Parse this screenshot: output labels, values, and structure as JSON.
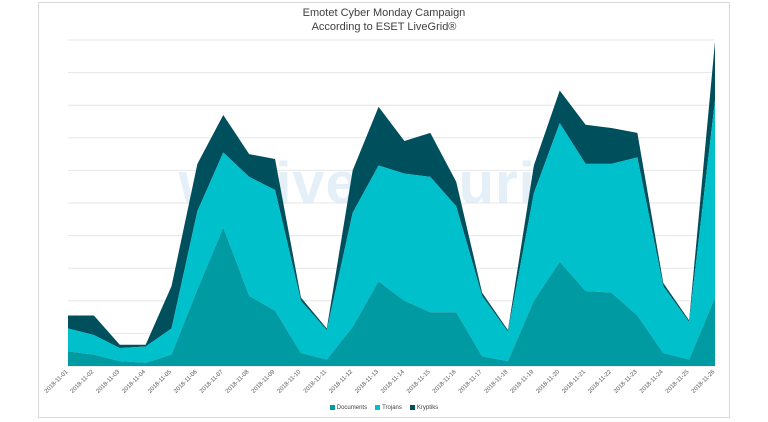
{
  "chart_data": {
    "type": "area",
    "stacked": true,
    "title": "Emotet Cyber Monday Campaign",
    "subtitle": "According to ESET LiveGrid®",
    "watermark": "welivesecurity",
    "grid": true,
    "legend_position": "bottom",
    "ylim": [
      0,
      100
    ],
    "categories": [
      "2018-11-01",
      "2018-11-02",
      "2018-11-03",
      "2018-11-04",
      "2018-11-05",
      "2018-11-06",
      "2018-11-07",
      "2018-11-08",
      "2018-11-09",
      "2018-11-10",
      "2018-11-11",
      "2018-11-12",
      "2018-11-13",
      "2018-11-14",
      "2018-11-15",
      "2018-11-16",
      "2018-11-17",
      "2018-11-18",
      "2018-11-19",
      "2018-11-20",
      "2018-11-21",
      "2018-11-22",
      "2018-11-23",
      "2018-11-24",
      "2018-11-25",
      "2018-11-26"
    ],
    "series": [
      {
        "name": "Documents",
        "color": "#009aa3",
        "values": [
          4.5,
          3.5,
          1.5,
          1.0,
          3.5,
          23.5,
          42.5,
          21.5,
          17.0,
          4.0,
          2.0,
          12.0,
          26.0,
          20.0,
          16.5,
          16.5,
          3.0,
          1.5,
          20.0,
          32.0,
          23.0,
          22.5,
          15.5,
          4.0,
          2.0,
          21.0
        ]
      },
      {
        "name": "Trojans",
        "color": "#00c0cc",
        "values": [
          7.0,
          6.0,
          4.0,
          5.0,
          8.0,
          24.0,
          23.0,
          36.5,
          37.0,
          16.0,
          9.0,
          35.0,
          35.5,
          39.0,
          41.5,
          32.5,
          18.5,
          9.0,
          33.0,
          42.5,
          39.0,
          39.5,
          48.5,
          20.5,
          11.5,
          60.5
        ]
      },
      {
        "name": "Kryptiks",
        "color": "#004f5c",
        "values": [
          4.0,
          6.0,
          1.0,
          0.5,
          13.0,
          14.5,
          11.5,
          7.0,
          9.5,
          1.0,
          0.5,
          13.0,
          18.0,
          10.0,
          13.5,
          7.5,
          1.0,
          0.5,
          8.5,
          10.0,
          12.0,
          11.0,
          7.5,
          1.0,
          0.5,
          18.0
        ]
      }
    ]
  }
}
